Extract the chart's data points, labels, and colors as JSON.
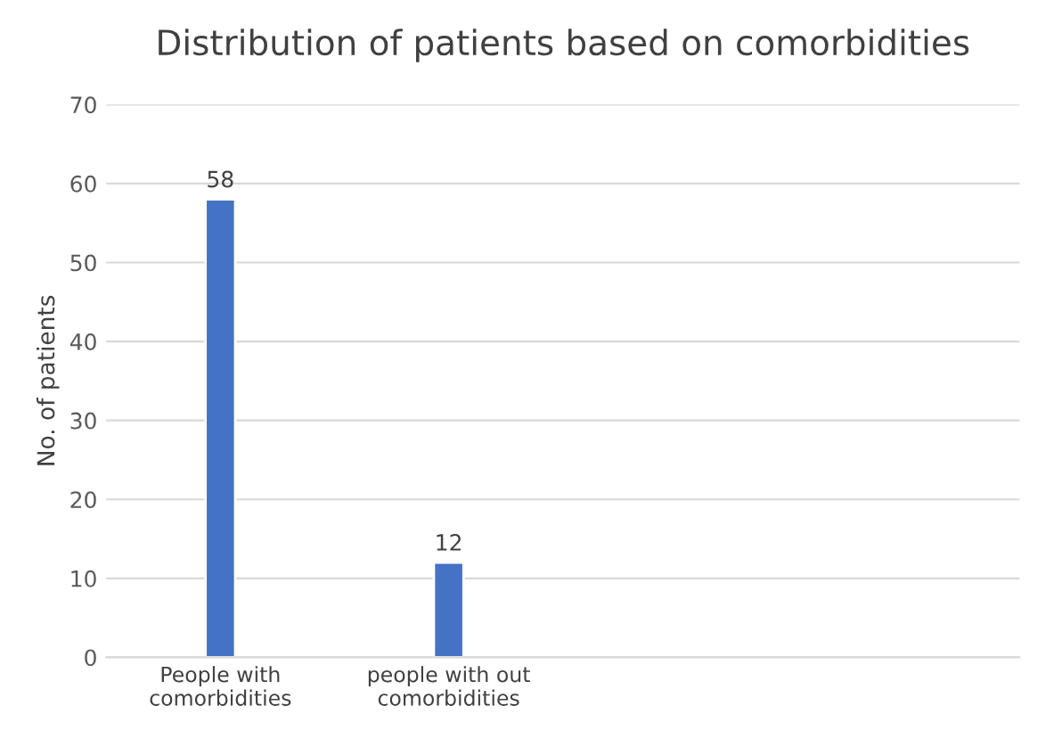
{
  "chart_data": {
    "type": "bar",
    "title": "Distribution of patients based on comorbidities",
    "ylabel": "No. of patients",
    "categories": [
      "People with\ncomorbidities",
      "people with out\ncomorbidities",
      null,
      null
    ],
    "values": [
      58,
      12,
      null,
      null
    ],
    "color": "#4472c4",
    "ylim": [
      0,
      70
    ],
    "yticks": [
      0,
      10,
      20,
      30,
      40,
      50,
      60,
      70
    ],
    "grid": "y",
    "data_labels": true
  }
}
